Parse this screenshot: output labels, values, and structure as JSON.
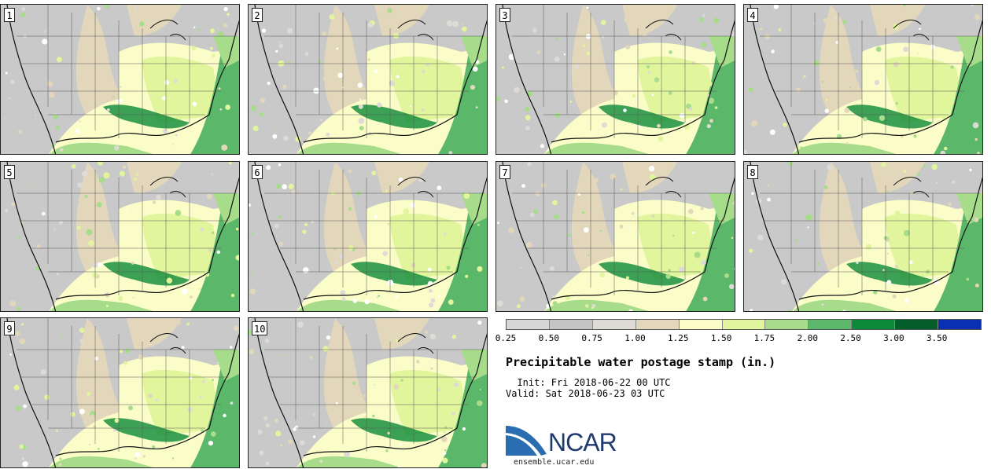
{
  "stamps": [
    {
      "label": "1"
    },
    {
      "label": "2"
    },
    {
      "label": "3"
    },
    {
      "label": "4"
    },
    {
      "label": "5"
    },
    {
      "label": "6"
    },
    {
      "label": "7"
    },
    {
      "label": "8"
    },
    {
      "label": "9"
    },
    {
      "label": "10"
    }
  ],
  "colorbar": {
    "colors": [
      "#d6d6d6",
      "#c4c4c4",
      "#dedbd7",
      "#e3d7bb",
      "#fbfdc8",
      "#e1f59d",
      "#a6dc8a",
      "#5bb86a",
      "#0d8a38",
      "#045e2a",
      "#0a2fb0"
    ],
    "labels": [
      "0.25",
      "0.50",
      "0.75",
      "1.00",
      "1.25",
      "1.50",
      "1.75",
      "2.00",
      "2.50",
      "3.00",
      "3.50"
    ]
  },
  "title": "Precipitable water postage stamp (in.)",
  "init": "  Init: Fri 2018-06-22 00 UTC",
  "valid": "Valid: Sat 2018-06-23 03 UTC",
  "logo": {
    "name": "NCAR",
    "url": "ensemble.ucar.edu",
    "colors": {
      "swoosh": "#2a6db0",
      "text": "#1f3a6e"
    }
  }
}
